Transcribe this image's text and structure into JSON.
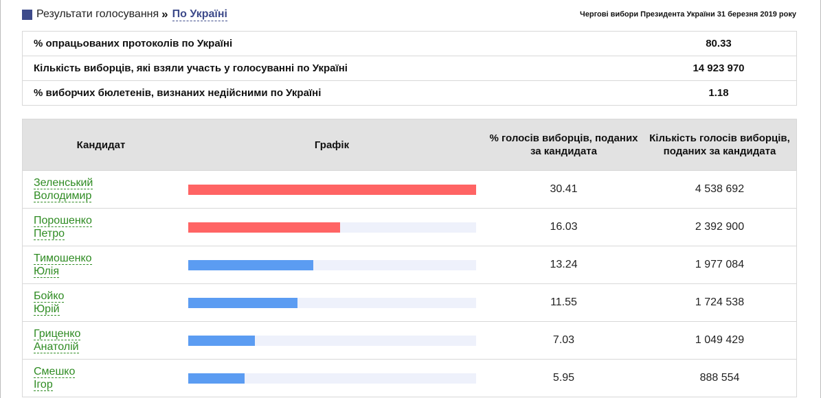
{
  "breadcrumb": {
    "home_label": "Результати голосування",
    "separator": "»",
    "current_label": "По Україні"
  },
  "election_title": "Чергові вибори Президента України 31 березня 2019 року",
  "summary": [
    {
      "label": "% опрацьованих протоколів по Україні",
      "value": "80.33"
    },
    {
      "label": "Кількість виборців, які взяли участь у голосуванні по Україні",
      "value": "14 923 970"
    },
    {
      "label": "% виборчих бюлетенів, визнаних недійсними по Україні",
      "value": "1.18"
    }
  ],
  "results": {
    "headers": {
      "candidate": "Кандидат",
      "graph": "Графік",
      "percent": "% голосів виборців, поданих за кандидата",
      "count": "Кількість голосів виборців, поданих за кандидата"
    },
    "colors": {
      "leader_bar": "#ff6464",
      "other_bar": "#5b9cf2",
      "track": "#eef1fb"
    },
    "rows": [
      {
        "surname": "Зеленський",
        "name": "Володимир",
        "percent": "30.41",
        "count": "4 538 692",
        "bar_color": "leader_bar"
      },
      {
        "surname": "Порошенко",
        "name": "Петро",
        "percent": "16.03",
        "count": "2 392 900",
        "bar_color": "leader_bar"
      },
      {
        "surname": "Тимошенко",
        "name": "Юлія",
        "percent": "13.24",
        "count": "1 977 084",
        "bar_color": "other_bar"
      },
      {
        "surname": "Бойко",
        "name": "Юрій",
        "percent": "11.55",
        "count": "1 724 538",
        "bar_color": "other_bar"
      },
      {
        "surname": "Гриценко",
        "name": "Анатолій",
        "percent": "7.03",
        "count": "1 049 429",
        "bar_color": "other_bar"
      },
      {
        "surname": "Смешко",
        "name": "Ігор",
        "percent": "5.95",
        "count": "888 554",
        "bar_color": "other_bar"
      }
    ]
  }
}
